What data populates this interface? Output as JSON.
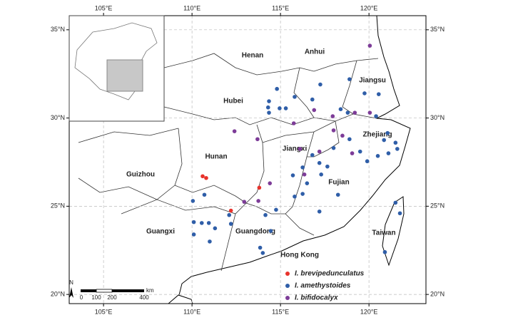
{
  "chart_data": {
    "type": "scatter",
    "xlim": [
      103.06,
      123.22
    ],
    "ylim": [
      19.48,
      35.8
    ],
    "xticks": [
      {
        "value": 105,
        "label": "105°E"
      },
      {
        "value": 110,
        "label": "110°E"
      },
      {
        "value": 115,
        "label": "115°E"
      },
      {
        "value": 120,
        "label": "120°E"
      }
    ],
    "yticks": [
      {
        "value": 20,
        "label": "20°N"
      },
      {
        "value": 25,
        "label": "25°N"
      },
      {
        "value": 30,
        "label": "30°N"
      },
      {
        "value": 35,
        "label": "35°N"
      }
    ],
    "grid": true,
    "series": [
      {
        "name": "I. brevipedunculatus",
        "color": "#e8322b",
        "x": [
          110.6,
          110.8,
          113.8,
          112.2
        ],
        "y": [
          26.7,
          26.6,
          26.05,
          24.75
        ]
      },
      {
        "name": "I. amethystoides",
        "color": "#2f5ea8",
        "x": [
          114.8,
          114.35,
          114.3,
          114.35,
          114.95,
          115.3,
          115.8,
          117.25,
          116.8,
          118.4,
          118.9,
          119.75,
          120.55,
          118.8,
          110.05,
          110.7,
          110.1,
          110.1,
          110.55,
          110.95,
          111.0,
          111.3,
          112.1,
          112.2,
          113.85,
          114.0,
          114.45,
          114.15,
          114.75,
          115.7,
          115.8,
          116.25,
          116.25,
          116.8,
          117.2,
          117.3,
          117.65,
          118.0,
          117.2,
          118.25,
          116.5,
          119.5,
          119.9,
          120.5,
          121.1,
          121.5,
          120.85,
          121.05,
          120.4,
          121.6,
          121.5,
          120.9,
          121.75,
          118.9
        ],
        "y": [
          31.65,
          30.95,
          30.6,
          30.3,
          30.55,
          30.55,
          31.2,
          31.9,
          31.05,
          30.5,
          32.2,
          31.4,
          31.35,
          30.3,
          25.3,
          25.65,
          24.1,
          23.4,
          24.05,
          24.05,
          23.0,
          23.75,
          24.5,
          24.0,
          22.65,
          22.35,
          23.6,
          24.5,
          24.8,
          26.75,
          25.55,
          25.7,
          27.2,
          27.9,
          27.45,
          26.8,
          27.25,
          28.3,
          24.7,
          25.65,
          26.3,
          28.1,
          27.55,
          27.85,
          28.0,
          28.6,
          28.75,
          29.15,
          30.1,
          28.25,
          25.2,
          22.4,
          24.6,
          28.8
        ]
      },
      {
        "name": "I. bifidocalyx",
        "color": "#7d3c98",
        "x": [
          120.05,
          112.4,
          113.7,
          115.75,
          116.9,
          117.95,
          119.2,
          120.05,
          118.0,
          118.5,
          119.05,
          116.1,
          117.2,
          116.35,
          114.4,
          113.75,
          112.95
        ],
        "y": [
          34.1,
          29.25,
          28.8,
          29.7,
          30.45,
          30.1,
          30.3,
          30.3,
          29.3,
          29.0,
          28.0,
          28.25,
          28.1,
          26.8,
          26.3,
          25.3,
          25.25
        ]
      }
    ],
    "regions": [
      "Henan",
      "Anhui",
      "Jiangsu",
      "Hubei",
      "Zhejiang",
      "Jiangxi",
      "Hunan",
      "Guizhou",
      "Fujian",
      "Guangxi",
      "Guangdong",
      "Taiwan",
      "Hong Kong"
    ],
    "north": "N",
    "scale_bar": {
      "labels": [
        "0",
        "100",
        "200",
        "400"
      ],
      "unit": "km"
    }
  }
}
